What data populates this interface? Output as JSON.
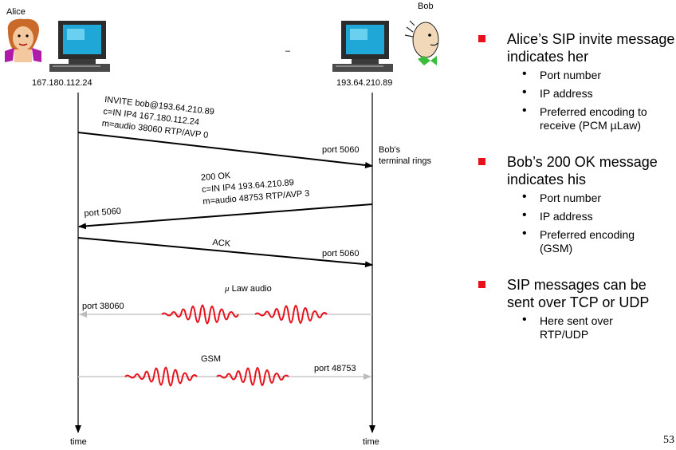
{
  "alice": {
    "name": "Alice",
    "ip": "167.180.112.24"
  },
  "bob": {
    "name": "Bob",
    "ip": "193.64.210.89",
    "rings": [
      "Bob's",
      "terminal rings"
    ]
  },
  "minus": "–",
  "invite": {
    "lines": [
      "INVITE bob@193.64.210.89",
      "c=IN IP4 167.180.112.24",
      "m=audio 38060 RTP/AVP 0"
    ],
    "port": "port 5060"
  },
  "ok": {
    "lines": [
      "200 OK",
      "c=IN IP4 193.64.210.89",
      "m=audio 48753 RTP/AVP 3"
    ],
    "port": "port 5060"
  },
  "ack": {
    "label": "ACK",
    "port": "port 5060"
  },
  "ulaw": {
    "mu": "μ",
    "label": "Law audio",
    "port": "port 38060"
  },
  "gsm": {
    "label": "GSM",
    "port": "port 48753"
  },
  "time_labels": [
    "time",
    "time"
  ],
  "bullets": [
    {
      "text": "Alice’s SIP invite message indicates her",
      "subs": [
        "Port number",
        "IP address",
        "Preferred encoding to receive (PCM µLaw)"
      ]
    },
    {
      "text": "Bob’s 200 OK message indicates his",
      "subs": [
        "Port number",
        "IP address",
        "Preferred encoding (GSM)"
      ]
    },
    {
      "text": "SIP messages can be sent over TCP or UDP",
      "subs": [
        "Here sent over RTP/UDP"
      ]
    }
  ],
  "page_number": "53",
  "colors": {
    "arrow": "#000000",
    "media_line": "#c8c8c8",
    "wave": "#e8101a",
    "bullet": "#e8101a"
  },
  "icons": [
    "alice-avatar-icon",
    "alice-computer-icon",
    "bob-computer-icon",
    "bob-avatar-icon"
  ]
}
